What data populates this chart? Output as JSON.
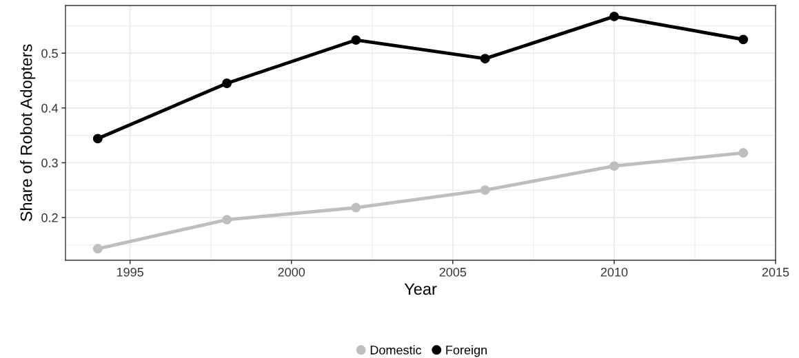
{
  "chart_data": {
    "type": "line",
    "xlabel": "Year",
    "ylabel": "Share of Robot Adopters",
    "x": [
      1994,
      1998,
      2002,
      2006,
      2010,
      2014
    ],
    "series": [
      {
        "name": "Domestic",
        "color": "#bebebe",
        "values": [
          0.143,
          0.196,
          0.218,
          0.25,
          0.294,
          0.318
        ]
      },
      {
        "name": "Foreign",
        "color": "#000000",
        "values": [
          0.344,
          0.445,
          0.524,
          0.49,
          0.567,
          0.525
        ]
      }
    ],
    "xlim": [
      1993,
      2015
    ],
    "xticks": [
      1995,
      2000,
      2005,
      2010,
      2015
    ],
    "ylim": [
      0.122,
      0.587
    ],
    "yticks": [
      0.2,
      0.3,
      0.4,
      0.5
    ],
    "grid": true,
    "legend": "bottom",
    "marker": "circle",
    "line_style": "solid"
  }
}
